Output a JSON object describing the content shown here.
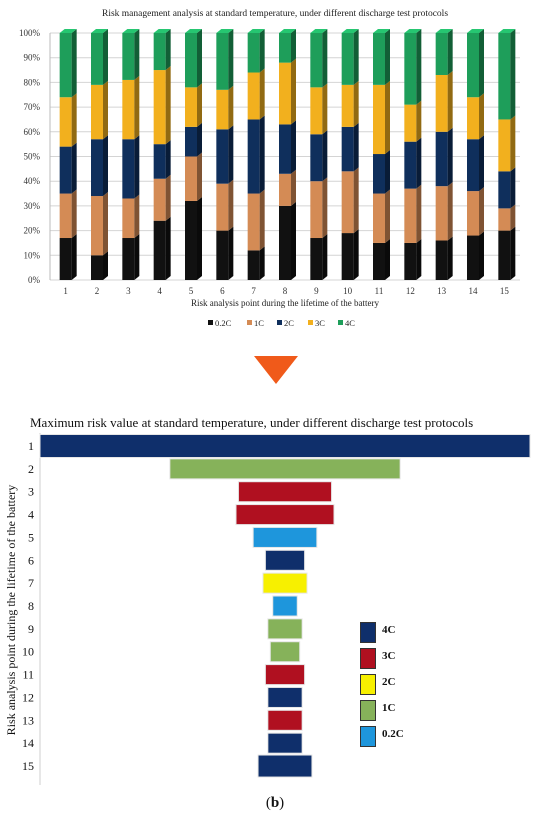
{
  "chart_data": [
    {
      "type": "bar",
      "stacked": "percent",
      "title": "Risk management analysis at standard temperature, under different discharge test protocols",
      "xlabel": "Risk analysis point during the lifetime of the battery",
      "ylabel": "",
      "ylim": [
        0,
        100
      ],
      "yticks": [
        "0%",
        "10%",
        "20%",
        "30%",
        "40%",
        "50%",
        "60%",
        "70%",
        "80%",
        "90%",
        "100%"
      ],
      "categories": [
        "1",
        "2",
        "3",
        "4",
        "5",
        "6",
        "7",
        "8",
        "9",
        "10",
        "11",
        "12",
        "13",
        "14",
        "15"
      ],
      "grid": true,
      "legend_position": "bottom",
      "series": [
        {
          "name": "0.2C",
          "color": "#111111",
          "values": [
            17,
            10,
            17,
            24,
            32,
            20,
            12,
            30,
            17,
            19,
            15,
            15,
            16,
            18,
            20
          ]
        },
        {
          "name": "1C",
          "color": "#d48b55",
          "values": [
            18,
            24,
            16,
            17,
            18,
            19,
            23,
            13,
            23,
            25,
            20,
            22,
            22,
            18,
            9
          ]
        },
        {
          "name": "2C",
          "color": "#0f2f5c",
          "values": [
            19,
            23,
            24,
            14,
            12,
            22,
            30,
            20,
            19,
            18,
            16,
            19,
            22,
            21,
            15
          ]
        },
        {
          "name": "3C",
          "color": "#f2b01e",
          "values": [
            20,
            22,
            24,
            30,
            16,
            16,
            19,
            25,
            19,
            17,
            28,
            15,
            23,
            17,
            21
          ]
        },
        {
          "name": "4C",
          "color": "#1e9e5a",
          "values": [
            26,
            21,
            19,
            15,
            22,
            23,
            16,
            12,
            22,
            21,
            21,
            29,
            17,
            26,
            35
          ]
        }
      ]
    },
    {
      "type": "bar",
      "orientation": "horizontal",
      "title": "Maximum risk value at standard temperature, under different discharge test protocols",
      "xlabel": "",
      "ylabel": "Risk analysis point during the lifetime of the battery",
      "categories": [
        "1",
        "2",
        "3",
        "4",
        "5",
        "6",
        "7",
        "8",
        "9",
        "10",
        "11",
        "12",
        "13",
        "14",
        "15"
      ],
      "values": [
        100,
        47,
        19,
        20,
        13,
        8,
        9,
        5,
        7,
        6,
        8,
        7,
        7,
        7,
        11
      ],
      "bar_colors": [
        "4C",
        "1C",
        "3C",
        "3C",
        "0.2C",
        "4C",
        "2C",
        "0.2C",
        "1C",
        "1C",
        "3C",
        "4C",
        "3C",
        "4C",
        "4C"
      ],
      "legend": [
        {
          "name": "4C",
          "color": "#0f2f6b"
        },
        {
          "name": "3C",
          "color": "#b01020"
        },
        {
          "name": "2C",
          "color": "#f7f000"
        },
        {
          "name": "1C",
          "color": "#86b25a"
        },
        {
          "name": "0.2C",
          "color": "#1e96dc"
        }
      ],
      "legend_position": "right"
    }
  ],
  "caption": "(b)",
  "caption_letter": "b"
}
